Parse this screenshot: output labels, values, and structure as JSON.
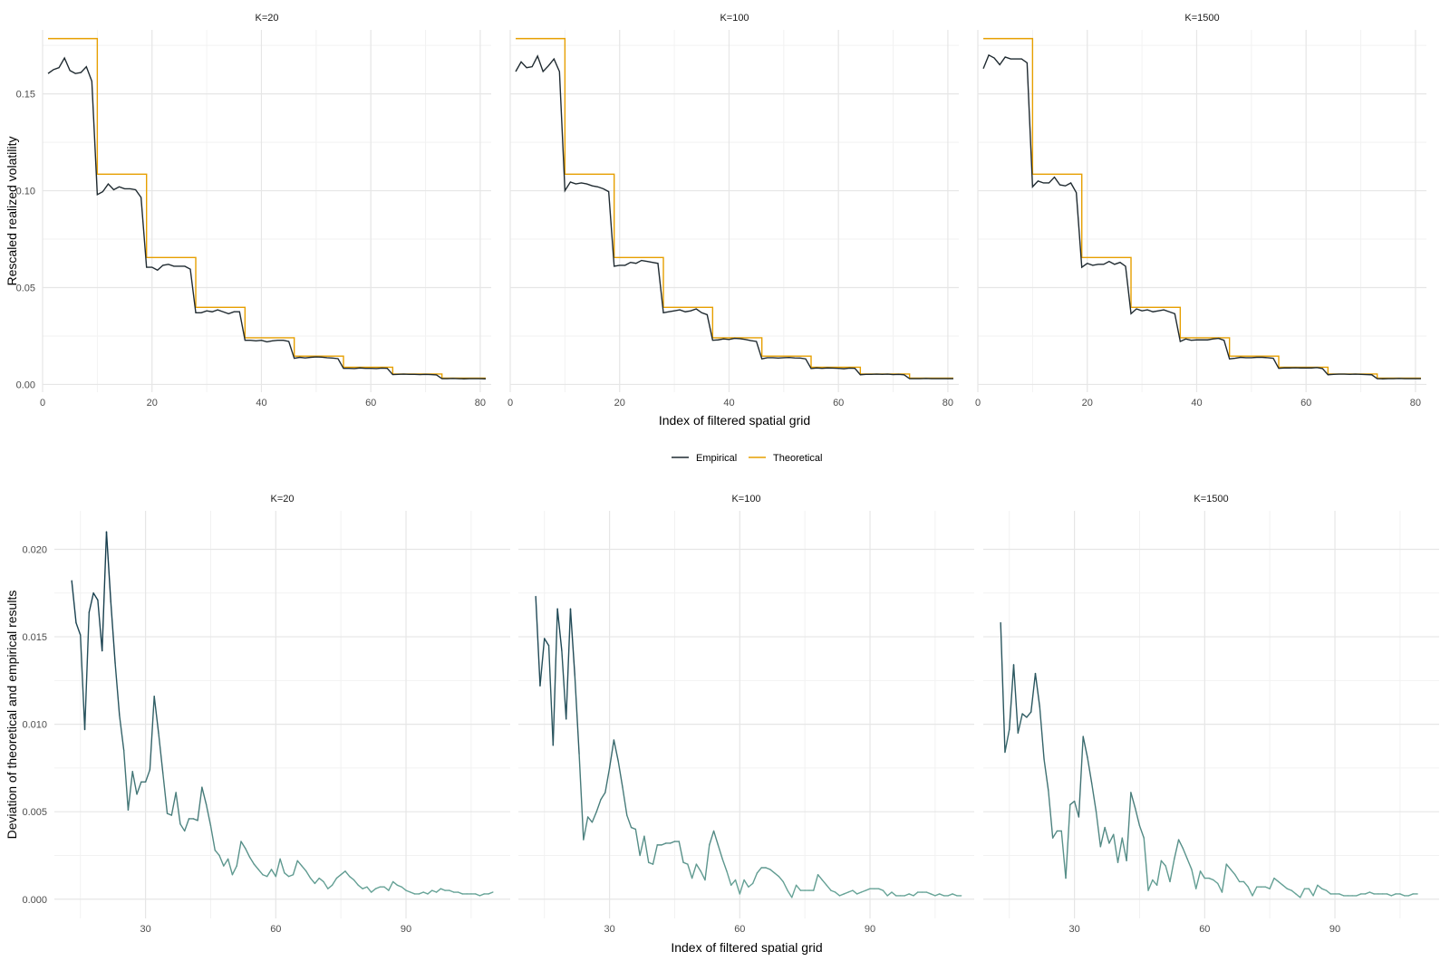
{
  "colors": {
    "empirical": "#1f2a30",
    "theoretical": "#e69f00",
    "deviation_high": "#13394a",
    "deviation_low": "#6aa79a",
    "grid_major": "#e6e6e6",
    "grid_minor": "#f2f2f2"
  },
  "legend": {
    "items": [
      {
        "label": "Empirical",
        "color": "#1f2a30"
      },
      {
        "label": "Theoretical",
        "color": "#e69f00"
      }
    ]
  },
  "chart_data": [
    {
      "type": "line",
      "xlabel": "Index of filtered spatial grid",
      "ylabel": "Rescaled realized volatility",
      "xlim": [
        0,
        82
      ],
      "ylim": [
        -0.004,
        0.183
      ],
      "xticks": [
        0,
        20,
        40,
        60,
        80
      ],
      "yticks": [
        0.0,
        0.05,
        0.1,
        0.15
      ],
      "ytick_labels": [
        "0.00",
        "0.05",
        "0.10",
        "0.15"
      ],
      "x_minor": [
        10,
        30,
        50,
        70
      ],
      "y_minor": [
        0.025,
        0.075,
        0.125,
        0.175
      ],
      "theoretical_levels": [
        0.1785,
        0.1085,
        0.0655,
        0.0398,
        0.0241,
        0.0146,
        0.0089,
        0.0054,
        0.0033
      ],
      "panels": [
        {
          "strip": "K=20",
          "empirical": [
            0.1605,
            0.1625,
            0.1635,
            0.1685,
            0.162,
            0.1605,
            0.161,
            0.164,
            0.1565,
            0.098,
            0.0995,
            0.1035,
            0.1005,
            0.102,
            0.101,
            0.101,
            0.1005,
            0.0965,
            0.0605,
            0.0605,
            0.059,
            0.0615,
            0.062,
            0.061,
            0.061,
            0.061,
            0.0595,
            0.037,
            0.037,
            0.038,
            0.0375,
            0.0385,
            0.0375,
            0.0365,
            0.0375,
            0.0375,
            0.0228,
            0.0228,
            0.0225,
            0.0228,
            0.022,
            0.0225,
            0.0228,
            0.0228,
            0.0222,
            0.0135,
            0.014,
            0.0137,
            0.014,
            0.0142,
            0.0141,
            0.0138,
            0.0136,
            0.0133,
            0.0083,
            0.0083,
            0.0082,
            0.0085,
            0.0083,
            0.0083,
            0.0082,
            0.0084,
            0.0083,
            0.0051,
            0.0052,
            0.0053,
            0.0052,
            0.0052,
            0.0051,
            0.0052,
            0.0051,
            0.0049,
            0.003,
            0.003,
            0.0031,
            0.003,
            0.0029,
            0.003,
            0.003,
            0.003,
            0.0029
          ]
        },
        {
          "strip": "K=100",
          "empirical": [
            0.1615,
            0.1665,
            0.1635,
            0.164,
            0.1695,
            0.1615,
            0.1645,
            0.168,
            0.1615,
            0.1,
            0.1045,
            0.1035,
            0.104,
            0.1035,
            0.1025,
            0.102,
            0.101,
            0.0995,
            0.061,
            0.0615,
            0.0615,
            0.063,
            0.0625,
            0.064,
            0.0635,
            0.063,
            0.0625,
            0.037,
            0.0375,
            0.038,
            0.0385,
            0.0375,
            0.038,
            0.039,
            0.037,
            0.036,
            0.0228,
            0.023,
            0.0235,
            0.0232,
            0.0238,
            0.0236,
            0.0232,
            0.0226,
            0.0222,
            0.0132,
            0.0138,
            0.0138,
            0.0136,
            0.0138,
            0.0139,
            0.0137,
            0.0136,
            0.0132,
            0.0082,
            0.0085,
            0.0083,
            0.0085,
            0.0084,
            0.0083,
            0.0081,
            0.0084,
            0.0083,
            0.005,
            0.0052,
            0.0052,
            0.0053,
            0.0052,
            0.0053,
            0.0051,
            0.0052,
            0.005,
            0.003,
            0.003,
            0.003,
            0.0031,
            0.003,
            0.003,
            0.003,
            0.003,
            0.003
          ]
        },
        {
          "strip": "K=1500",
          "empirical": [
            0.163,
            0.17,
            0.1685,
            0.165,
            0.169,
            0.168,
            0.168,
            0.168,
            0.166,
            0.102,
            0.105,
            0.104,
            0.104,
            0.107,
            0.103,
            0.1025,
            0.104,
            0.099,
            0.0605,
            0.0625,
            0.0615,
            0.062,
            0.062,
            0.0635,
            0.062,
            0.063,
            0.061,
            0.0365,
            0.039,
            0.038,
            0.0385,
            0.0375,
            0.038,
            0.0385,
            0.0375,
            0.0365,
            0.0222,
            0.0235,
            0.0228,
            0.023,
            0.023,
            0.023,
            0.0235,
            0.0238,
            0.0228,
            0.0132,
            0.0135,
            0.014,
            0.0138,
            0.0138,
            0.014,
            0.014,
            0.0138,
            0.0135,
            0.0083,
            0.0085,
            0.0085,
            0.0086,
            0.0085,
            0.0085,
            0.0085,
            0.0087,
            0.0082,
            0.005,
            0.0052,
            0.0053,
            0.0053,
            0.0052,
            0.0053,
            0.0052,
            0.0051,
            0.005,
            0.003,
            0.0029,
            0.003,
            0.003,
            0.0031,
            0.003,
            0.003,
            0.003,
            0.003
          ]
        }
      ]
    },
    {
      "type": "line",
      "xlabel": "Index of filtered spatial grid",
      "ylabel": "Deviation of theoretical and empirical results",
      "xlim": [
        9,
        114
      ],
      "ylim": [
        -0.0011,
        0.0222
      ],
      "xticks": [
        30,
        60,
        90
      ],
      "yticks": [
        0.0,
        0.005,
        0.01,
        0.015,
        0.02
      ],
      "ytick_labels": [
        "0.000",
        "0.005",
        "0.010",
        "0.015",
        "0.020"
      ],
      "x_minor": [
        15,
        45,
        75,
        105
      ],
      "y_minor": [
        0.0025,
        0.0075,
        0.0125,
        0.0175
      ],
      "x_start": 13,
      "panels": [
        {
          "strip": "K=20",
          "deviation": [
            0.0182,
            0.0158,
            0.0151,
            0.0097,
            0.0164,
            0.0175,
            0.0171,
            0.0142,
            0.021,
            0.017,
            0.0135,
            0.0105,
            0.0085,
            0.0051,
            0.0073,
            0.006,
            0.0067,
            0.0067,
            0.0074,
            0.0116,
            0.0095,
            0.0072,
            0.0049,
            0.0048,
            0.0061,
            0.0043,
            0.0039,
            0.0046,
            0.0046,
            0.0045,
            0.0064,
            0.0054,
            0.0042,
            0.0028,
            0.0025,
            0.0019,
            0.0023,
            0.0014,
            0.0019,
            0.0033,
            0.0029,
            0.0024,
            0.002,
            0.0017,
            0.0014,
            0.0013,
            0.0017,
            0.0013,
            0.0023,
            0.0015,
            0.0013,
            0.0014,
            0.0022,
            0.0019,
            0.0016,
            0.0012,
            0.0009,
            0.0012,
            0.001,
            0.0006,
            0.0008,
            0.0012,
            0.0014,
            0.0016,
            0.0013,
            0.0011,
            0.0008,
            0.0006,
            0.0007,
            0.0004,
            0.0006,
            0.0007,
            0.0007,
            0.0005,
            0.001,
            0.0008,
            0.0007,
            0.0005,
            0.0004,
            0.0003,
            0.0003,
            0.0004,
            0.0003,
            0.0005,
            0.0004,
            0.0006,
            0.0005,
            0.0005,
            0.0004,
            0.0004,
            0.0003,
            0.0003,
            0.0003,
            0.0003,
            0.0002,
            0.0003,
            0.0003,
            0.0004
          ]
        },
        {
          "strip": "K=100",
          "deviation": [
            0.0173,
            0.0122,
            0.0149,
            0.0145,
            0.0088,
            0.0166,
            0.0142,
            0.0103,
            0.0166,
            0.0128,
            0.0083,
            0.0034,
            0.0047,
            0.0044,
            0.005,
            0.0057,
            0.0061,
            0.0075,
            0.0091,
            0.0079,
            0.0064,
            0.0048,
            0.0041,
            0.004,
            0.0025,
            0.0036,
            0.0021,
            0.002,
            0.0031,
            0.0031,
            0.0032,
            0.0032,
            0.0033,
            0.0033,
            0.0021,
            0.002,
            0.0012,
            0.002,
            0.0016,
            0.0011,
            0.0031,
            0.0039,
            0.0031,
            0.0023,
            0.0016,
            0.0008,
            0.0011,
            0.0003,
            0.0011,
            0.0007,
            0.0009,
            0.0015,
            0.0018,
            0.0018,
            0.0017,
            0.0015,
            0.0013,
            0.001,
            0.0005,
            0.0001,
            0.0008,
            0.0005,
            0.0005,
            0.0005,
            0.0005,
            0.0014,
            0.0011,
            0.0008,
            0.0005,
            0.0004,
            0.0002,
            0.0003,
            0.0004,
            0.0005,
            0.0003,
            0.0004,
            0.0005,
            0.0006,
            0.0006,
            0.0006,
            0.0005,
            0.0002,
            0.0004,
            0.0002,
            0.0002,
            0.0002,
            0.0003,
            0.0002,
            0.0004,
            0.0004,
            0.0004,
            0.0003,
            0.0002,
            0.0003,
            0.0002,
            0.0002,
            0.0003,
            0.0002,
            0.0002
          ]
        },
        {
          "strip": "K=1500",
          "deviation": [
            0.0158,
            0.0084,
            0.0097,
            0.0134,
            0.0095,
            0.0106,
            0.0104,
            0.0107,
            0.0129,
            0.011,
            0.008,
            0.0062,
            0.0035,
            0.0039,
            0.0039,
            0.0012,
            0.0054,
            0.0056,
            0.0047,
            0.0093,
            0.0081,
            0.0066,
            0.005,
            0.003,
            0.0041,
            0.0032,
            0.0037,
            0.0021,
            0.0035,
            0.0022,
            0.0061,
            0.0052,
            0.0042,
            0.0035,
            0.0005,
            0.0011,
            0.0008,
            0.0022,
            0.0019,
            0.001,
            0.0023,
            0.0034,
            0.0029,
            0.0023,
            0.0017,
            0.0006,
            0.0016,
            0.0012,
            0.0012,
            0.0011,
            0.0009,
            0.0004,
            0.002,
            0.0017,
            0.0014,
            0.001,
            0.001,
            0.0007,
            0.0002,
            0.0007,
            0.0007,
            0.0007,
            0.0006,
            0.0012,
            0.001,
            0.0008,
            0.0006,
            0.0005,
            0.0003,
            0.0001,
            0.0006,
            0.0006,
            0.0002,
            0.0008,
            0.0006,
            0.0005,
            0.0003,
            0.0003,
            0.0003,
            0.0002,
            0.0002,
            0.0002,
            0.0002,
            0.0003,
            0.0003,
            0.0004,
            0.0003,
            0.0003,
            0.0003,
            0.0003,
            0.0002,
            0.0003,
            0.0003,
            0.0002,
            0.0002,
            0.0003,
            0.0003
          ]
        }
      ]
    }
  ]
}
